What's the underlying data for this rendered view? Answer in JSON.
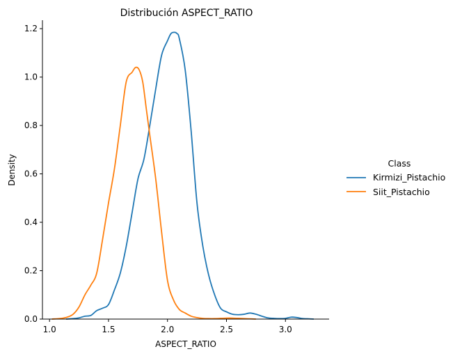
{
  "chart_data": {
    "type": "line",
    "title": "Distribución ASPECT_RATIO",
    "xlabel": "ASPECT_RATIO",
    "ylabel": "Density",
    "xlim": [
      0.94,
      3.37
    ],
    "ylim": [
      0,
      1.235
    ],
    "xticks": [
      1.0,
      1.5,
      2.0,
      2.5,
      3.0
    ],
    "xtick_labels": [
      "1.0",
      "1.5",
      "2.0",
      "2.5",
      "3.0"
    ],
    "yticks": [
      0.0,
      0.2,
      0.4,
      0.6,
      0.8,
      1.0,
      1.2
    ],
    "ytick_labels": [
      "0.0",
      "0.2",
      "0.4",
      "0.6",
      "0.8",
      "1.0",
      "1.2"
    ],
    "grid": false,
    "legend": {
      "title": "Class",
      "placement": "right"
    },
    "series": [
      {
        "name": "Kirmizi_Pistachio",
        "color": "#1f77b4",
        "x": [
          1.14,
          1.2,
          1.25,
          1.3,
          1.35,
          1.4,
          1.45,
          1.5,
          1.55,
          1.6,
          1.65,
          1.7,
          1.75,
          1.8,
          1.85,
          1.9,
          1.95,
          2.0,
          2.03,
          2.06,
          2.08,
          2.1,
          2.15,
          2.2,
          2.25,
          2.3,
          2.35,
          2.4,
          2.45,
          2.5,
          2.55,
          2.6,
          2.65,
          2.7,
          2.75,
          2.8,
          2.85,
          2.9,
          2.95,
          3.0,
          3.05,
          3.1,
          3.15,
          3.2,
          3.24
        ],
        "y": [
          0.0,
          0.002,
          0.005,
          0.012,
          0.015,
          0.035,
          0.045,
          0.06,
          0.12,
          0.19,
          0.3,
          0.44,
          0.58,
          0.66,
          0.8,
          0.95,
          1.09,
          1.15,
          1.18,
          1.185,
          1.18,
          1.16,
          1.03,
          0.78,
          0.48,
          0.3,
          0.18,
          0.1,
          0.045,
          0.03,
          0.02,
          0.018,
          0.02,
          0.025,
          0.02,
          0.012,
          0.005,
          0.003,
          0.002,
          0.003,
          0.008,
          0.006,
          0.002,
          0.001,
          0.0
        ]
      },
      {
        "name": "Siit_Pistachio",
        "color": "#ff7f0e",
        "x": [
          1.02,
          1.1,
          1.15,
          1.2,
          1.25,
          1.3,
          1.35,
          1.4,
          1.45,
          1.5,
          1.55,
          1.6,
          1.65,
          1.7,
          1.73,
          1.76,
          1.79,
          1.82,
          1.85,
          1.9,
          1.95,
          2.0,
          2.05,
          2.1,
          2.15,
          2.2,
          2.25,
          2.3,
          2.35,
          2.4,
          2.45,
          2.5,
          2.55,
          2.6,
          2.65,
          2.7,
          2.75
        ],
        "y": [
          0.0,
          0.003,
          0.008,
          0.02,
          0.05,
          0.1,
          0.14,
          0.19,
          0.33,
          0.48,
          0.62,
          0.8,
          0.98,
          1.02,
          1.04,
          1.03,
          0.98,
          0.87,
          0.76,
          0.58,
          0.36,
          0.16,
          0.08,
          0.04,
          0.025,
          0.012,
          0.006,
          0.003,
          0.002,
          0.002,
          0.003,
          0.004,
          0.004,
          0.003,
          0.002,
          0.001,
          0.0
        ]
      }
    ]
  }
}
